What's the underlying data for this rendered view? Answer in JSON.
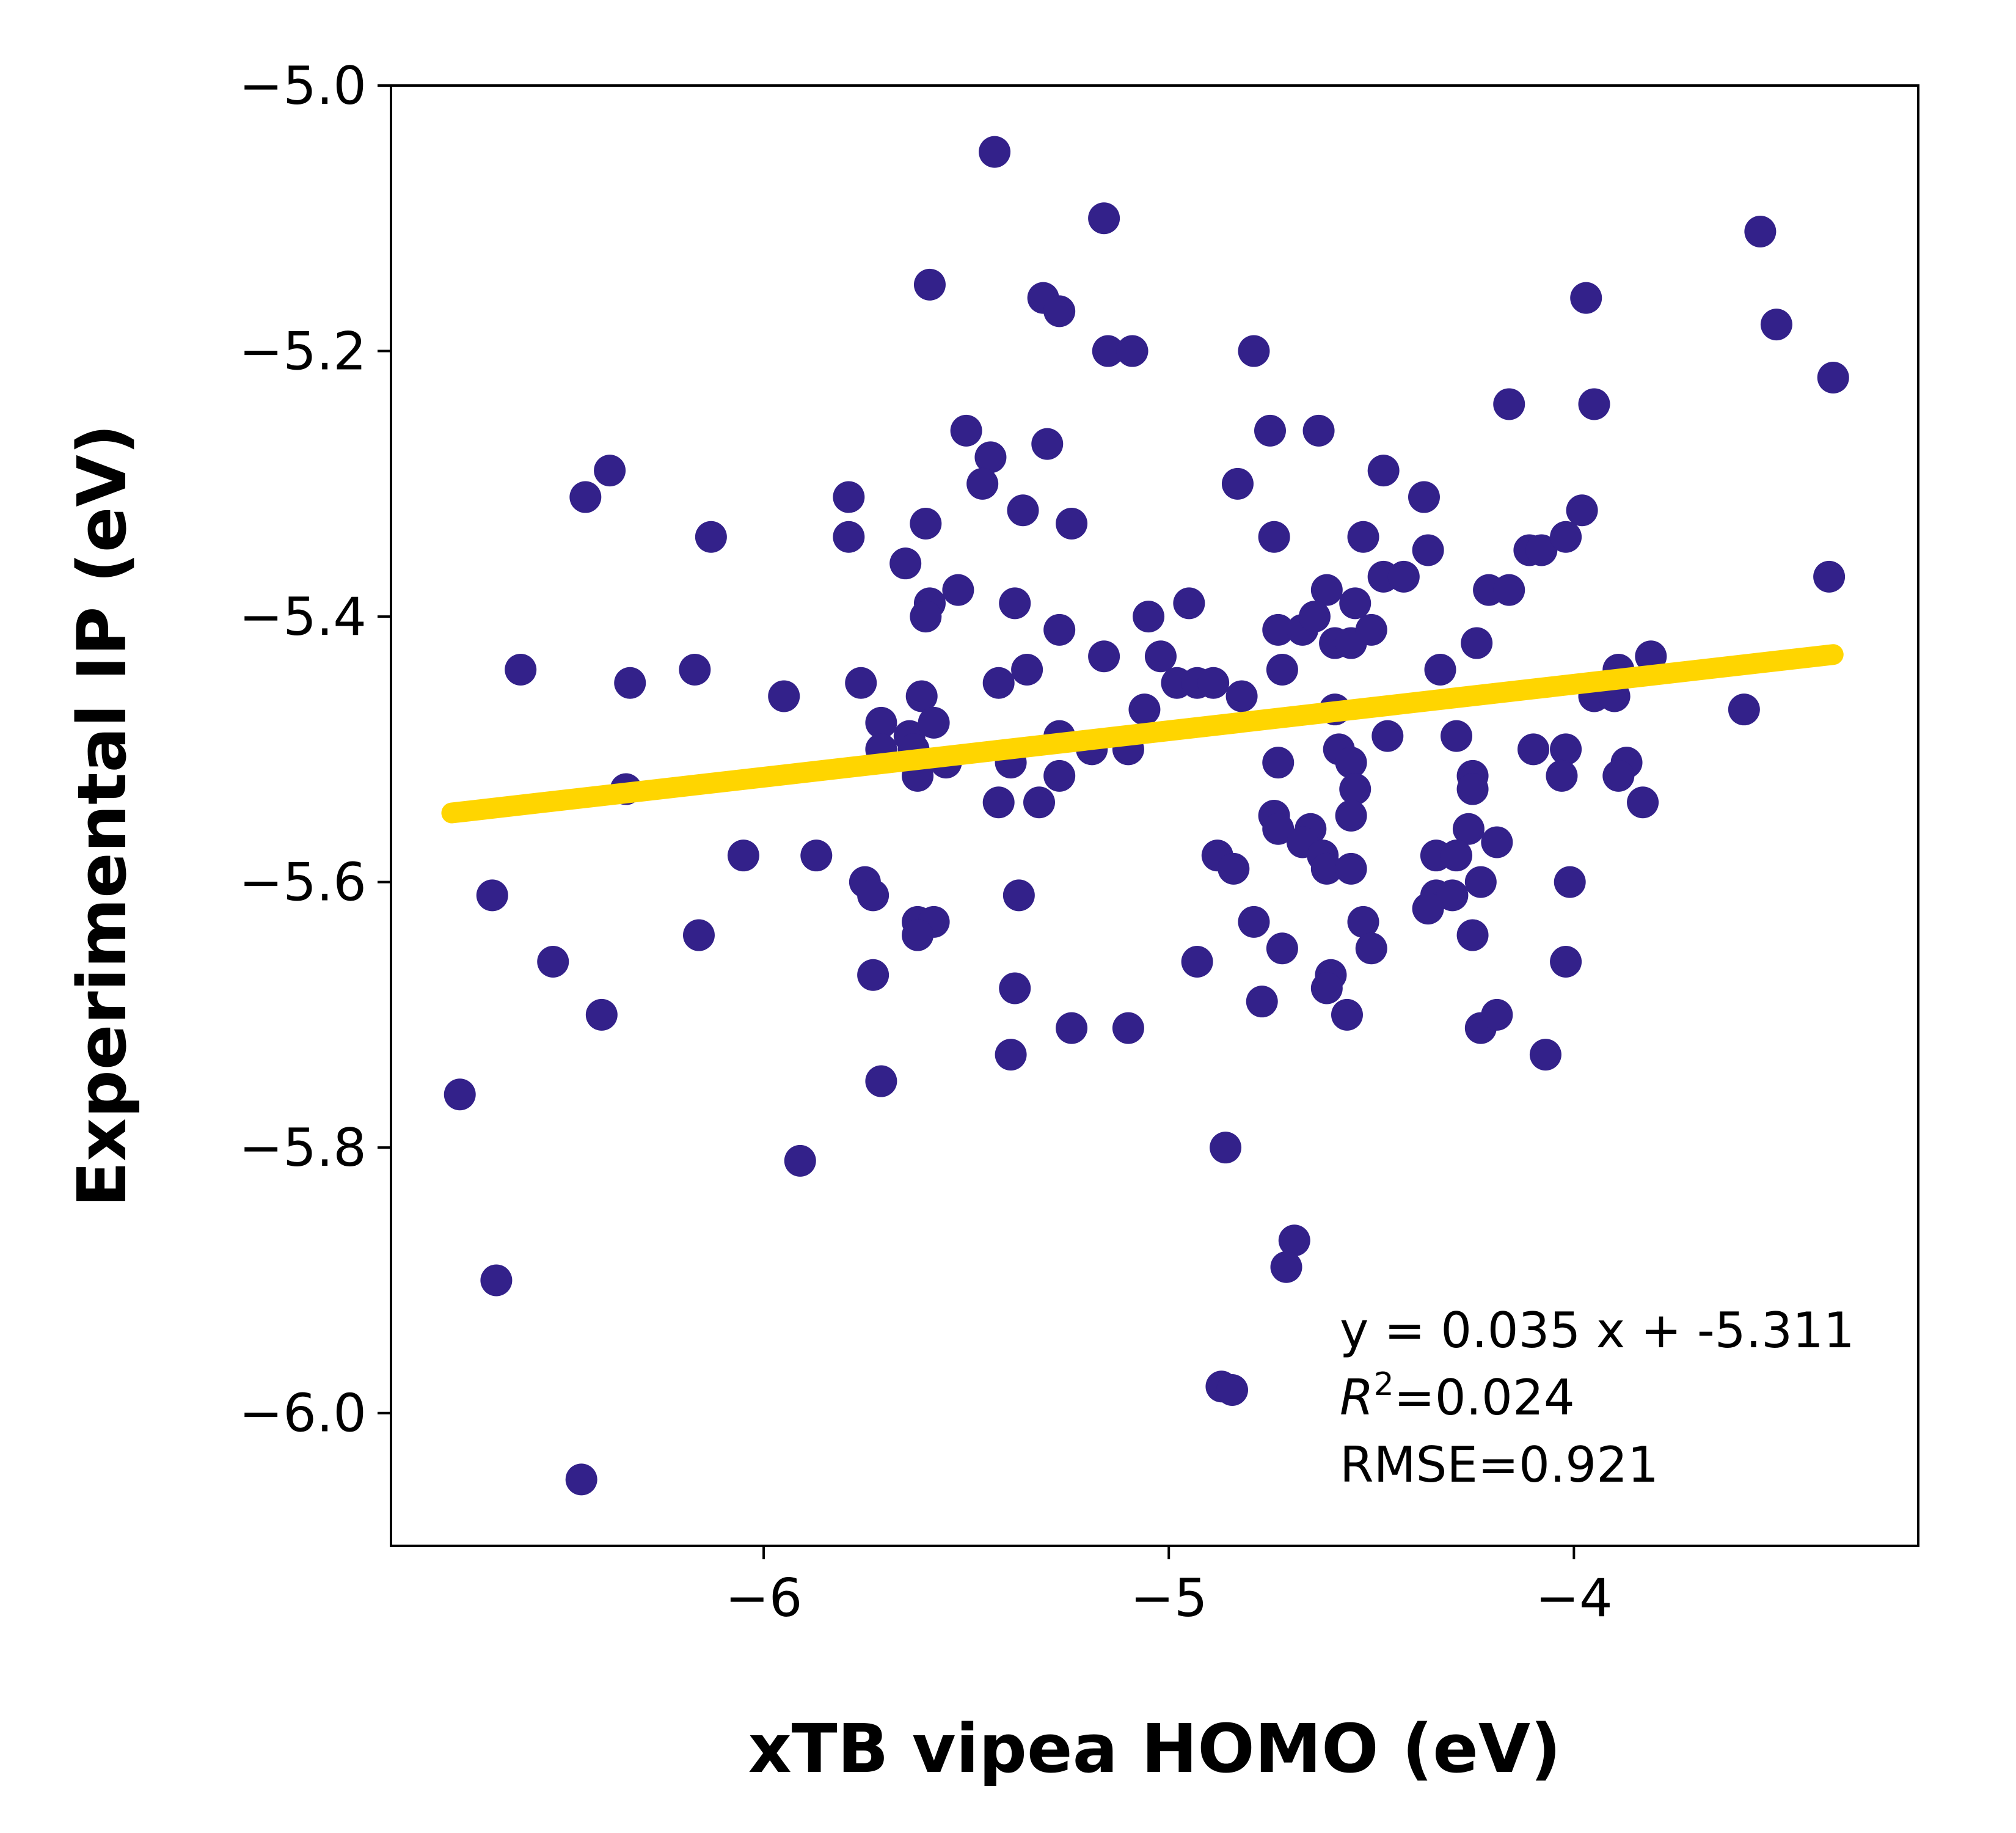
{
  "chart_data": {
    "type": "scatter",
    "xlabel": "xTB vipea HOMO (eV)",
    "ylabel": "Experimental IP (eV)",
    "xlim": [
      -6.92,
      -3.15
    ],
    "ylim": [
      -6.1,
      -5.0
    ],
    "x_ticks": [
      -6,
      -5,
      -4
    ],
    "x_tick_labels": [
      "−6",
      "−5",
      "−4"
    ],
    "y_ticks": [
      -5.0,
      -5.2,
      -5.4,
      -5.6,
      -5.8,
      -6.0
    ],
    "y_tick_labels": [
      "−5.0",
      "−5.2",
      "−5.4",
      "−5.6",
      "−5.8",
      "−6.0"
    ],
    "grid": false,
    "legend_position": "lower-right",
    "colors": {
      "points": "#33218A",
      "fit_line": "#FFD500"
    },
    "fit": {
      "slope": 0.035,
      "intercept": -5.311,
      "x_range": [
        -6.77,
        -3.36
      ]
    },
    "annotation": {
      "equation": "y = 0.035 x + -5.311",
      "r2_symbol": "R",
      "r2_exponent": "2",
      "r2_value": "=0.024",
      "rmse": "RMSE=0.921"
    },
    "points": [
      [
        -5.43,
        -5.05
      ],
      [
        -5.16,
        -5.1
      ],
      [
        -5.59,
        -5.15
      ],
      [
        -5.31,
        -5.16
      ],
      [
        -5.27,
        -5.17
      ],
      [
        -5.15,
        -5.2
      ],
      [
        -5.09,
        -5.2
      ],
      [
        -4.79,
        -5.2
      ],
      [
        -3.97,
        -5.16
      ],
      [
        -3.54,
        -5.11
      ],
      [
        -3.5,
        -5.18
      ],
      [
        -3.36,
        -5.22
      ],
      [
        -5.5,
        -5.26
      ],
      [
        -5.3,
        -5.27
      ],
      [
        -5.44,
        -5.28
      ],
      [
        -5.46,
        -5.3
      ],
      [
        -4.75,
        -5.26
      ],
      [
        -4.63,
        -5.26
      ],
      [
        -4.16,
        -5.24
      ],
      [
        -3.95,
        -5.24
      ],
      [
        -6.38,
        -5.29
      ],
      [
        -6.44,
        -5.31
      ],
      [
        -5.79,
        -5.31
      ],
      [
        -5.36,
        -5.32
      ],
      [
        -4.83,
        -5.3
      ],
      [
        -4.47,
        -5.29
      ],
      [
        -4.37,
        -5.31
      ],
      [
        -3.98,
        -5.32
      ],
      [
        -6.13,
        -5.34
      ],
      [
        -5.79,
        -5.34
      ],
      [
        -5.6,
        -5.33
      ],
      [
        -5.24,
        -5.33
      ],
      [
        -4.74,
        -5.34
      ],
      [
        -4.52,
        -5.34
      ],
      [
        -4.36,
        -5.35
      ],
      [
        -4.11,
        -5.35
      ],
      [
        -4.08,
        -5.35
      ],
      [
        -4.02,
        -5.34
      ],
      [
        -5.65,
        -5.36
      ],
      [
        -5.59,
        -5.39
      ],
      [
        -5.6,
        -5.4
      ],
      [
        -5.52,
        -5.38
      ],
      [
        -5.38,
        -5.39
      ],
      [
        -4.61,
        -5.38
      ],
      [
        -4.54,
        -5.39
      ],
      [
        -4.47,
        -5.37
      ],
      [
        -4.42,
        -5.37
      ],
      [
        -4.21,
        -5.38
      ],
      [
        -4.16,
        -5.38
      ],
      [
        -3.37,
        -5.37
      ],
      [
        -5.27,
        -5.41
      ],
      [
        -5.05,
        -5.4
      ],
      [
        -4.95,
        -5.39
      ],
      [
        -4.73,
        -5.41
      ],
      [
        -4.67,
        -5.41
      ],
      [
        -4.64,
        -5.4
      ],
      [
        -4.59,
        -5.42
      ],
      [
        -4.55,
        -5.42
      ],
      [
        -4.5,
        -5.41
      ],
      [
        -4.24,
        -5.42
      ],
      [
        -6.6,
        -5.44
      ],
      [
        -6.33,
        -5.45
      ],
      [
        -6.17,
        -5.44
      ],
      [
        -5.95,
        -5.46
      ],
      [
        -5.76,
        -5.45
      ],
      [
        -5.61,
        -5.46
      ],
      [
        -5.42,
        -5.45
      ],
      [
        -5.35,
        -5.44
      ],
      [
        -5.16,
        -5.43
      ],
      [
        -5.02,
        -5.43
      ],
      [
        -4.98,
        -5.45
      ],
      [
        -4.93,
        -5.45
      ],
      [
        -4.89,
        -5.45
      ],
      [
        -4.82,
        -5.46
      ],
      [
        -4.72,
        -5.44
      ],
      [
        -4.59,
        -5.47
      ],
      [
        -4.33,
        -5.44
      ],
      [
        -3.95,
        -5.46
      ],
      [
        -3.9,
        -5.46
      ],
      [
        -3.89,
        -5.44
      ],
      [
        -3.81,
        -5.43
      ],
      [
        -3.58,
        -5.47
      ],
      [
        -5.71,
        -5.48
      ],
      [
        -5.64,
        -5.49
      ],
      [
        -5.58,
        -5.48
      ],
      [
        -5.71,
        -5.5
      ],
      [
        -5.27,
        -5.49
      ],
      [
        -5.06,
        -5.47
      ],
      [
        -4.46,
        -5.49
      ],
      [
        -4.29,
        -5.49
      ],
      [
        -5.63,
        -5.5
      ],
      [
        -5.19,
        -5.5
      ],
      [
        -5.1,
        -5.5
      ],
      [
        -4.58,
        -5.5
      ],
      [
        -4.1,
        -5.5
      ],
      [
        -4.02,
        -5.5
      ],
      [
        -5.55,
        -5.51
      ],
      [
        -5.39,
        -5.51
      ],
      [
        -4.73,
        -5.51
      ],
      [
        -4.55,
        -5.51
      ],
      [
        -3.87,
        -5.51
      ],
      [
        -6.34,
        -5.53
      ],
      [
        -5.62,
        -5.52
      ],
      [
        -5.27,
        -5.52
      ],
      [
        -4.54,
        -5.53
      ],
      [
        -4.25,
        -5.52
      ],
      [
        -4.25,
        -5.53
      ],
      [
        -4.03,
        -5.52
      ],
      [
        -3.89,
        -5.52
      ],
      [
        -3.83,
        -5.54
      ],
      [
        -5.42,
        -5.54
      ],
      [
        -5.32,
        -5.54
      ],
      [
        -4.74,
        -5.55
      ],
      [
        -4.73,
        -5.56
      ],
      [
        -4.65,
        -5.56
      ],
      [
        -4.55,
        -5.55
      ],
      [
        -4.26,
        -5.56
      ],
      [
        -4.19,
        -5.57
      ],
      [
        -6.05,
        -5.58
      ],
      [
        -5.87,
        -5.58
      ],
      [
        -4.88,
        -5.58
      ],
      [
        -4.84,
        -5.59
      ],
      [
        -4.67,
        -5.57
      ],
      [
        -4.62,
        -5.58
      ],
      [
        -4.61,
        -5.59
      ],
      [
        -4.55,
        -5.59
      ],
      [
        -4.34,
        -5.58
      ],
      [
        -4.29,
        -5.58
      ],
      [
        -4.23,
        -5.6
      ],
      [
        -4.01,
        -5.6
      ],
      [
        -6.67,
        -5.61
      ],
      [
        -5.75,
        -5.6
      ],
      [
        -5.73,
        -5.61
      ],
      [
        -5.37,
        -5.61
      ],
      [
        -4.34,
        -5.61
      ],
      [
        -4.3,
        -5.61
      ],
      [
        -4.36,
        -5.62
      ],
      [
        -6.16,
        -5.64
      ],
      [
        -5.62,
        -5.63
      ],
      [
        -5.58,
        -5.63
      ],
      [
        -5.62,
        -5.64
      ],
      [
        -4.79,
        -5.63
      ],
      [
        -4.52,
        -5.63
      ],
      [
        -4.25,
        -5.64
      ],
      [
        -6.52,
        -5.66
      ],
      [
        -5.73,
        -5.67
      ],
      [
        -4.93,
        -5.66
      ],
      [
        -4.72,
        -5.65
      ],
      [
        -4.6,
        -5.67
      ],
      [
        -4.5,
        -5.65
      ],
      [
        -4.02,
        -5.66
      ],
      [
        -6.4,
        -5.7
      ],
      [
        -5.38,
        -5.68
      ],
      [
        -4.61,
        -5.68
      ],
      [
        -5.24,
        -5.71
      ],
      [
        -5.1,
        -5.71
      ],
      [
        -4.77,
        -5.69
      ],
      [
        -4.56,
        -5.7
      ],
      [
        -4.23,
        -5.71
      ],
      [
        -4.19,
        -5.7
      ],
      [
        -5.71,
        -5.75
      ],
      [
        -5.39,
        -5.73
      ],
      [
        -4.07,
        -5.73
      ],
      [
        -6.75,
        -5.76
      ],
      [
        -5.91,
        -5.81
      ],
      [
        -4.86,
        -5.8
      ],
      [
        -4.69,
        -5.87
      ],
      [
        -4.71,
        -5.89
      ],
      [
        -6.66,
        -5.9
      ],
      [
        -4.87,
        -5.98
      ],
      [
        -6.45,
        -6.05
      ]
    ]
  }
}
